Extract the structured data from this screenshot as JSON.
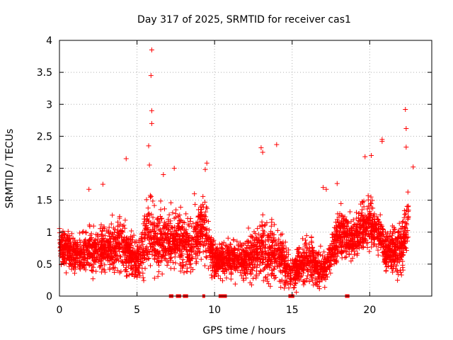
{
  "chart_data": {
    "type": "scatter",
    "title": "Day 317 of 2025, SRMTID for receiver cas1",
    "xlabel": "GPS time / hours",
    "ylabel": "SRMTID / TECUs",
    "xlim": [
      0,
      24
    ],
    "ylim": [
      0,
      4
    ],
    "x_ticks": [
      0,
      5,
      10,
      15,
      20
    ],
    "x_tick_labels": [
      "0",
      "5",
      "10",
      "15",
      "20"
    ],
    "y_ticks": [
      0,
      0.5,
      1,
      1.5,
      2,
      2.5,
      3,
      3.5,
      4
    ],
    "y_tick_labels": [
      "0",
      "0.5",
      "1",
      "1.5",
      "2",
      "2.5",
      "3",
      "3.5",
      "4"
    ],
    "grid": true,
    "marker": "+",
    "series_color": "#ff0000",
    "random_seed": 317,
    "x_range_data": [
      0,
      22.5
    ],
    "profile": [
      {
        "x": 0,
        "median": 0.8,
        "spread": 0.35
      },
      {
        "x": 1,
        "median": 0.65,
        "spread": 0.35
      },
      {
        "x": 2,
        "median": 0.7,
        "spread": 0.4
      },
      {
        "x": 3,
        "median": 0.75,
        "spread": 0.45
      },
      {
        "x": 4,
        "median": 0.8,
        "spread": 0.5
      },
      {
        "x": 5,
        "median": 0.55,
        "spread": 0.35
      },
      {
        "x": 5.8,
        "median": 1.0,
        "spread": 0.7
      },
      {
        "x": 6.5,
        "median": 0.9,
        "spread": 0.6
      },
      {
        "x": 7.5,
        "median": 0.9,
        "spread": 0.55
      },
      {
        "x": 8.5,
        "median": 0.8,
        "spread": 0.5
      },
      {
        "x": 9.3,
        "median": 1.1,
        "spread": 0.55
      },
      {
        "x": 10,
        "median": 0.55,
        "spread": 0.3
      },
      {
        "x": 11,
        "median": 0.6,
        "spread": 0.35
      },
      {
        "x": 12,
        "median": 0.55,
        "spread": 0.35
      },
      {
        "x": 13,
        "median": 0.75,
        "spread": 0.55
      },
      {
        "x": 14,
        "median": 0.7,
        "spread": 0.55
      },
      {
        "x": 15,
        "median": 0.35,
        "spread": 0.3
      },
      {
        "x": 16,
        "median": 0.6,
        "spread": 0.45
      },
      {
        "x": 17,
        "median": 0.4,
        "spread": 0.35
      },
      {
        "x": 18,
        "median": 0.95,
        "spread": 0.5
      },
      {
        "x": 19,
        "median": 0.9,
        "spread": 0.35
      },
      {
        "x": 20,
        "median": 1.2,
        "spread": 0.5
      },
      {
        "x": 21,
        "median": 0.75,
        "spread": 0.45
      },
      {
        "x": 22,
        "median": 0.7,
        "spread": 0.5
      },
      {
        "x": 22.5,
        "median": 1.2,
        "spread": 0.6
      }
    ],
    "points_per_hour": 170,
    "highlight_points": [
      {
        "x": 5.95,
        "y": 3.85
      },
      {
        "x": 5.9,
        "y": 3.45
      },
      {
        "x": 5.95,
        "y": 2.9
      },
      {
        "x": 5.95,
        "y": 2.7
      },
      {
        "x": 5.75,
        "y": 2.35
      },
      {
        "x": 5.8,
        "y": 2.05
      },
      {
        "x": 4.3,
        "y": 2.15
      },
      {
        "x": 9.5,
        "y": 2.08
      },
      {
        "x": 9.4,
        "y": 1.98
      },
      {
        "x": 13.0,
        "y": 2.32
      },
      {
        "x": 14.0,
        "y": 2.37
      },
      {
        "x": 13.1,
        "y": 2.25
      },
      {
        "x": 19.7,
        "y": 2.18
      },
      {
        "x": 20.1,
        "y": 2.2
      },
      {
        "x": 20.8,
        "y": 2.45
      },
      {
        "x": 20.8,
        "y": 2.42
      },
      {
        "x": 22.3,
        "y": 2.92
      },
      {
        "x": 22.35,
        "y": 2.62
      },
      {
        "x": 22.35,
        "y": 2.33
      },
      {
        "x": 17.0,
        "y": 1.7
      },
      {
        "x": 17.2,
        "y": 1.67
      },
      {
        "x": 17.9,
        "y": 1.76
      },
      {
        "x": 7.4,
        "y": 2.0
      },
      {
        "x": 6.7,
        "y": 1.9
      },
      {
        "x": 8.7,
        "y": 1.6
      },
      {
        "x": 1.9,
        "y": 1.67
      },
      {
        "x": 2.8,
        "y": 1.75
      },
      {
        "x": 22.8,
        "y": 2.02
      }
    ],
    "zero_markers_x": [
      7.15,
      7.25,
      7.6,
      7.75,
      8.05,
      8.2,
      9.3,
      10.35,
      10.45,
      10.55,
      10.7,
      14.85,
      14.95,
      15.05,
      18.5,
      18.6
    ]
  }
}
